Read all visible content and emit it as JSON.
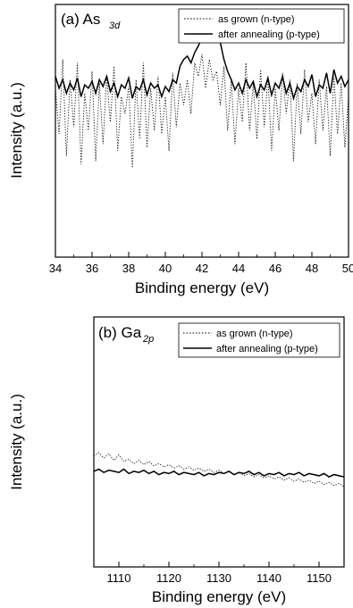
{
  "chart_data": [
    {
      "type": "line",
      "panel_label": "(a) As",
      "panel_subscript": "3d",
      "xlabel": "Binding energy (eV)",
      "ylabel": "Intensity (a.u.)",
      "xlim": [
        34,
        50
      ],
      "ylim": [
        0,
        1
      ],
      "x_ticks": [
        34,
        36,
        38,
        40,
        42,
        44,
        46,
        48,
        50
      ],
      "y_ticks_labeled": false,
      "legend": {
        "position": "top-right",
        "entries": [
          "as grown (n-type)",
          "after annealing (p-type)"
        ]
      },
      "series": [
        {
          "name": "as grown (n-type)",
          "style": "dotted",
          "x": [
            34.0,
            34.2,
            34.4,
            34.6,
            34.8,
            35.0,
            35.2,
            35.4,
            35.6,
            35.8,
            36.0,
            36.2,
            36.4,
            36.6,
            36.8,
            37.0,
            37.2,
            37.4,
            37.6,
            37.8,
            38.0,
            38.2,
            38.4,
            38.6,
            38.8,
            39.0,
            39.2,
            39.4,
            39.6,
            39.8,
            40.0,
            40.2,
            40.4,
            40.6,
            40.8,
            41.0,
            41.2,
            41.4,
            41.6,
            41.8,
            42.0,
            42.2,
            42.4,
            42.6,
            42.8,
            43.0,
            43.2,
            43.4,
            43.6,
            43.8,
            44.0,
            44.2,
            44.4,
            44.6,
            44.8,
            45.0,
            45.2,
            45.4,
            45.6,
            45.8,
            46.0,
            46.2,
            46.4,
            46.6,
            46.8,
            47.0,
            47.2,
            47.4,
            47.6,
            47.8,
            48.0,
            48.2,
            48.4,
            48.6,
            48.8,
            49.0,
            49.2,
            49.4,
            49.6,
            49.8,
            50.0
          ],
          "values": [
            0.55,
            0.28,
            0.72,
            0.15,
            0.6,
            0.32,
            0.7,
            0.1,
            0.52,
            0.3,
            0.65,
            0.12,
            0.58,
            0.22,
            0.62,
            0.35,
            0.68,
            0.18,
            0.5,
            0.4,
            0.56,
            0.08,
            0.6,
            0.25,
            0.7,
            0.2,
            0.55,
            0.3,
            0.62,
            0.28,
            0.5,
            0.18,
            0.64,
            0.32,
            0.58,
            0.45,
            0.6,
            0.4,
            0.7,
            0.62,
            0.75,
            0.55,
            0.72,
            0.6,
            0.65,
            0.45,
            0.68,
            0.3,
            0.6,
            0.22,
            0.55,
            0.35,
            0.7,
            0.3,
            0.58,
            0.25,
            0.66,
            0.32,
            0.62,
            0.18,
            0.55,
            0.3,
            0.64,
            0.4,
            0.6,
            0.12,
            0.58,
            0.28,
            0.66,
            0.35,
            0.52,
            0.22,
            0.6,
            0.3,
            0.56,
            0.15,
            0.62,
            0.28,
            0.58,
            0.2,
            0.5
          ]
        },
        {
          "name": "after annealing (p-type)",
          "style": "solid",
          "x": [
            34.0,
            34.2,
            34.4,
            34.6,
            34.8,
            35.0,
            35.2,
            35.4,
            35.6,
            35.8,
            36.0,
            36.2,
            36.4,
            36.6,
            36.8,
            37.0,
            37.2,
            37.4,
            37.6,
            37.8,
            38.0,
            38.2,
            38.4,
            38.6,
            38.8,
            39.0,
            39.2,
            39.4,
            39.6,
            39.8,
            40.0,
            40.2,
            40.4,
            40.6,
            40.8,
            41.0,
            41.2,
            41.4,
            41.6,
            41.8,
            42.0,
            42.2,
            42.4,
            42.6,
            42.8,
            43.0,
            43.2,
            43.4,
            43.6,
            43.8,
            44.0,
            44.2,
            44.4,
            44.6,
            44.8,
            45.0,
            45.2,
            45.4,
            45.6,
            45.8,
            46.0,
            46.2,
            46.4,
            46.6,
            46.8,
            47.0,
            47.2,
            47.4,
            47.6,
            47.8,
            48.0,
            48.2,
            48.4,
            48.6,
            48.8,
            49.0,
            49.2,
            49.4,
            49.6,
            49.8,
            50.0
          ],
          "values": [
            0.62,
            0.55,
            0.6,
            0.52,
            0.58,
            0.54,
            0.61,
            0.5,
            0.57,
            0.55,
            0.59,
            0.52,
            0.6,
            0.56,
            0.62,
            0.53,
            0.58,
            0.5,
            0.57,
            0.55,
            0.61,
            0.49,
            0.56,
            0.54,
            0.6,
            0.51,
            0.58,
            0.55,
            0.57,
            0.5,
            0.56,
            0.53,
            0.6,
            0.58,
            0.68,
            0.72,
            0.74,
            0.7,
            0.76,
            0.8,
            0.85,
            0.88,
            0.92,
            0.94,
            0.86,
            0.82,
            0.72,
            0.65,
            0.6,
            0.54,
            0.58,
            0.52,
            0.6,
            0.55,
            0.59,
            0.5,
            0.57,
            0.54,
            0.61,
            0.51,
            0.58,
            0.55,
            0.62,
            0.52,
            0.58,
            0.49,
            0.56,
            0.53,
            0.6,
            0.56,
            0.63,
            0.5,
            0.57,
            0.55,
            0.64,
            0.52,
            0.66,
            0.58,
            0.62,
            0.56,
            0.6
          ]
        }
      ]
    },
    {
      "type": "line",
      "panel_label": "(b) Ga",
      "panel_subscript": "2p",
      "xlabel": "Binding energy (eV)",
      "ylabel": "Intensity (a.u.)",
      "xlim": [
        1105,
        1155
      ],
      "ylim": [
        0,
        1
      ],
      "x_ticks": [
        1110,
        1120,
        1130,
        1140,
        1150
      ],
      "y_ticks_labeled": false,
      "legend": {
        "position": "top-right",
        "entries": [
          "as grown (n-type)",
          "after annealing (p-type)"
        ]
      },
      "series": [
        {
          "name": "as grown (n-type)",
          "style": "dotted",
          "x": [
            1105,
            1106,
            1107,
            1108,
            1109,
            1110,
            1111,
            1112,
            1113,
            1114,
            1115,
            1116,
            1117,
            1118,
            1119,
            1120,
            1121,
            1122,
            1123,
            1124,
            1125,
            1126,
            1127,
            1128,
            1129,
            1130,
            1131,
            1132,
            1133,
            1134,
            1135,
            1136,
            1137,
            1138,
            1139,
            1140,
            1141,
            1142,
            1143,
            1144,
            1145,
            1146,
            1147,
            1148,
            1149,
            1150,
            1151,
            1152,
            1153,
            1154,
            1155
          ],
          "values": [
            0.6,
            0.63,
            0.58,
            0.62,
            0.56,
            0.61,
            0.55,
            0.57,
            0.53,
            0.56,
            0.52,
            0.55,
            0.51,
            0.53,
            0.5,
            0.52,
            0.49,
            0.51,
            0.48,
            0.5,
            0.47,
            0.49,
            0.46,
            0.48,
            0.45,
            0.47,
            0.44,
            0.46,
            0.43,
            0.45,
            0.42,
            0.44,
            0.41,
            0.43,
            0.4,
            0.42,
            0.39,
            0.41,
            0.38,
            0.4,
            0.37,
            0.39,
            0.36,
            0.38,
            0.35,
            0.37,
            0.34,
            0.36,
            0.33,
            0.35,
            0.32
          ]
        },
        {
          "name": "after annealing (p-type)",
          "style": "solid",
          "x": [
            1105,
            1106,
            1107,
            1108,
            1109,
            1110,
            1111,
            1112,
            1113,
            1114,
            1115,
            1116,
            1117,
            1118,
            1119,
            1120,
            1121,
            1122,
            1123,
            1124,
            1125,
            1126,
            1127,
            1128,
            1129,
            1130,
            1131,
            1132,
            1133,
            1134,
            1135,
            1136,
            1137,
            1138,
            1139,
            1140,
            1141,
            1142,
            1143,
            1144,
            1145,
            1146,
            1147,
            1148,
            1149,
            1150,
            1151,
            1152,
            1153,
            1154,
            1155
          ],
          "values": [
            0.46,
            0.48,
            0.45,
            0.47,
            0.46,
            0.45,
            0.48,
            0.44,
            0.46,
            0.45,
            0.47,
            0.44,
            0.46,
            0.43,
            0.45,
            0.44,
            0.46,
            0.43,
            0.45,
            0.44,
            0.43,
            0.45,
            0.42,
            0.44,
            0.43,
            0.45,
            0.44,
            0.46,
            0.43,
            0.45,
            0.44,
            0.46,
            0.43,
            0.45,
            0.42,
            0.44,
            0.43,
            0.45,
            0.42,
            0.44,
            0.43,
            0.45,
            0.42,
            0.44,
            0.43,
            0.42,
            0.44,
            0.41,
            0.43,
            0.42,
            0.41
          ]
        }
      ]
    }
  ]
}
